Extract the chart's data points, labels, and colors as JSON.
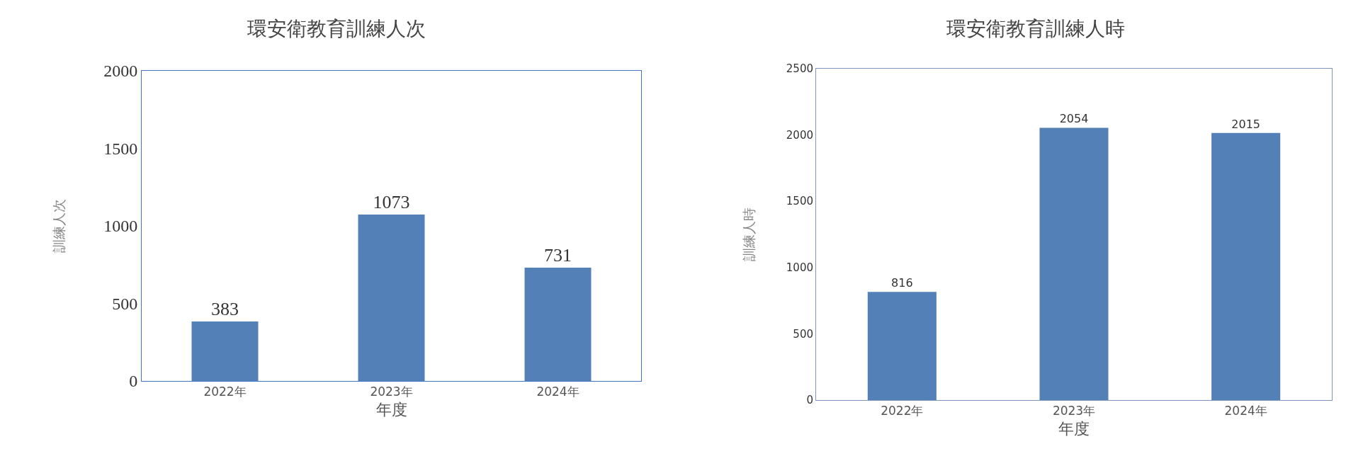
{
  "chart_data": [
    {
      "type": "bar",
      "title": "環安衛教育訓練人次",
      "xlabel": "年度",
      "ylabel": "訓練人次",
      "categories": [
        "2022年",
        "2023年",
        "2024年"
      ],
      "values": [
        383,
        1073,
        731
      ],
      "color": "#5480b8",
      "ylim": [
        0,
        2000
      ],
      "yticks": [
        0,
        500,
        1000,
        1500,
        2000
      ],
      "grid": false,
      "data_labels": true
    },
    {
      "type": "bar",
      "title": "環安衛教育訓練人時",
      "xlabel": "年度",
      "ylabel": "訓練人時",
      "categories": [
        "2022年",
        "2023年",
        "2024年"
      ],
      "values": [
        816,
        2054,
        2015
      ],
      "color": "#5480b8",
      "ylim": [
        0,
        2500
      ],
      "yticks": [
        0,
        500,
        1000,
        1500,
        2000,
        2500
      ],
      "grid": false,
      "data_labels": true
    }
  ]
}
